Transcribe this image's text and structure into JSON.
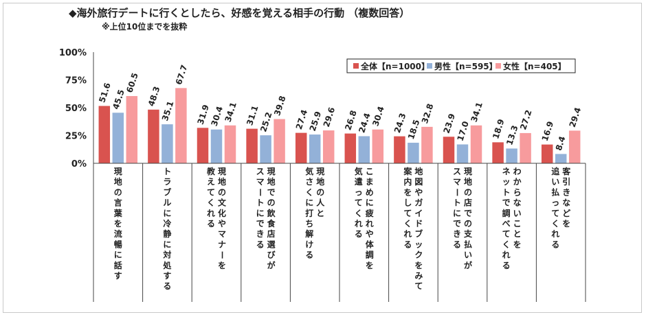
{
  "header": {
    "title": "◆海外旅行デートに行くとしたら、好感を覚える相手の行動 （複数回答）",
    "note": "※上位10位までを抜粋"
  },
  "colors": {
    "all": "#d9534f",
    "male": "#93b1d8",
    "female": "#f79b9d",
    "axis": "#444444"
  },
  "chart_data": {
    "type": "bar",
    "categories": [
      "現地の言葉を流暢に話す",
      "トラブルに冷静に対処する",
      "現地の文化やマナーを教えてくれる",
      "現地での飲食店選びがスマートにできる",
      "現地の人と気さくに打ち解ける",
      "こまめに疲れや体調を気遣ってくれる",
      "地図やガイドブックをみて案内をしてくれる",
      "現地の店での支払いがスマートにできる",
      "わからないことをネットで調べてくれる",
      "客引きなどを追い払ってくれる"
    ],
    "category_lines": [
      [
        "現地の言葉を流暢に話す"
      ],
      [
        "トラブルに冷静に対処する"
      ],
      [
        "現地の文化やマナーを",
        "教えてくれる"
      ],
      [
        "現地での飲食店選びが",
        "スマートにできる"
      ],
      [
        "現地の人と",
        "気さくに打ち解ける"
      ],
      [
        "こまめに疲れや体調を",
        "気遣ってくれる"
      ],
      [
        "地図やガイドブックをみて",
        "案内をしてくれる"
      ],
      [
        "現地の店での支払いが",
        "スマートにできる"
      ],
      [
        "わからないことを",
        "ネットで調べてくれる"
      ],
      [
        "客引きなどを",
        "追い払ってくれる"
      ]
    ],
    "series": [
      {
        "name": "全体【n=1000】",
        "color": "#d9534f",
        "values": [
          51.6,
          48.3,
          31.9,
          31.1,
          27.4,
          26.8,
          24.3,
          23.9,
          18.9,
          16.9
        ],
        "labels": [
          "51.6",
          "48.3",
          "31.9",
          "31.1",
          "27.4",
          "26.8",
          "24.3",
          "23.9",
          "18.9",
          "16.9"
        ]
      },
      {
        "name": "男性【n=595】",
        "color": "#93b1d8",
        "values": [
          45.5,
          35.1,
          30.4,
          25.2,
          25.9,
          24.4,
          18.5,
          17.0,
          13.3,
          8.4
        ],
        "labels": [
          "45.5",
          "35.1",
          "30.4",
          "25.2",
          "25.9",
          "24.4",
          "18.5",
          "17.0",
          "13.3",
          "8.4"
        ]
      },
      {
        "name": "女性【n=405】",
        "color": "#f79b9d",
        "values": [
          60.5,
          67.7,
          34.1,
          39.8,
          29.6,
          30.4,
          32.8,
          34.1,
          27.2,
          29.4
        ],
        "labels": [
          "60.5",
          "67.7",
          "34.1",
          "39.8",
          "29.6",
          "30.4",
          "32.8",
          "34.1",
          "27.2",
          "29.4"
        ]
      }
    ],
    "yticks": [
      "0%",
      "25%",
      "50%",
      "75%",
      "100%"
    ],
    "ylim": [
      0,
      100
    ],
    "grid": false,
    "legend_position": "top-right"
  }
}
